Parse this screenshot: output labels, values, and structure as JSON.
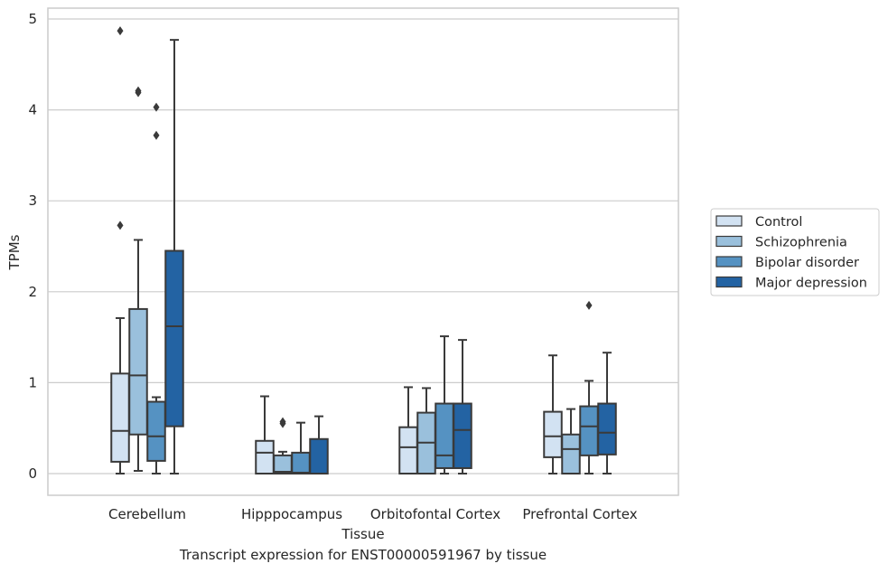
{
  "chart_data": {
    "type": "box",
    "xlabel": "Tissue",
    "ylabel": "TPMs",
    "ylim": [
      -0.23,
      5.13
    ],
    "yticks": [
      0,
      1,
      2,
      3,
      4,
      5
    ],
    "grid": "horizontal",
    "legend_position": "right",
    "categories": [
      "Cerebellum",
      "Hipppocampus",
      "Orbitofontal Cortex",
      "Prefrontal Cortex"
    ],
    "series": [
      {
        "name": "Control",
        "color": "#d2e2f2",
        "boxes": [
          {
            "whislo": 0.0,
            "q1": 0.13,
            "med": 0.47,
            "q3": 1.1,
            "whishi": 1.71,
            "fliers": [
              2.73,
              4.87
            ]
          },
          {
            "whislo": 0.0,
            "q1": 0.0,
            "med": 0.23,
            "q3": 0.36,
            "whishi": 0.85,
            "fliers": []
          },
          {
            "whislo": 0.0,
            "q1": 0.0,
            "med": 0.29,
            "q3": 0.51,
            "whishi": 0.95,
            "fliers": []
          },
          {
            "whislo": 0.0,
            "q1": 0.18,
            "med": 0.41,
            "q3": 0.68,
            "whishi": 1.3,
            "fliers": []
          }
        ]
      },
      {
        "name": "Schizophrenia",
        "color": "#9ac0dc",
        "boxes": [
          {
            "whislo": 0.03,
            "q1": 0.43,
            "med": 1.08,
            "q3": 1.81,
            "whishi": 2.57,
            "fliers": [
              4.19,
              4.21
            ]
          },
          {
            "whislo": 0.0,
            "q1": 0.0,
            "med": 0.02,
            "q3": 0.2,
            "whishi": 0.24,
            "fliers": [
              0.55,
              0.57
            ]
          },
          {
            "whislo": 0.0,
            "q1": 0.0,
            "med": 0.34,
            "q3": 0.67,
            "whishi": 0.94,
            "fliers": []
          },
          {
            "whislo": 0.0,
            "q1": 0.0,
            "med": 0.27,
            "q3": 0.43,
            "whishi": 0.71,
            "fliers": []
          }
        ]
      },
      {
        "name": "Bipolar disorder",
        "color": "#5592c2",
        "boxes": [
          {
            "whislo": 0.0,
            "q1": 0.14,
            "med": 0.41,
            "q3": 0.79,
            "whishi": 0.84,
            "fliers": [
              3.72,
              4.03
            ]
          },
          {
            "whislo": 0.0,
            "q1": 0.0,
            "med": 0.01,
            "q3": 0.23,
            "whishi": 0.56,
            "fliers": []
          },
          {
            "whislo": 0.0,
            "q1": 0.06,
            "med": 0.2,
            "q3": 0.77,
            "whishi": 1.51,
            "fliers": []
          },
          {
            "whislo": 0.0,
            "q1": 0.2,
            "med": 0.52,
            "q3": 0.74,
            "whishi": 1.02,
            "fliers": [
              1.85
            ]
          }
        ]
      },
      {
        "name": "Major depression",
        "color": "#2363a3",
        "boxes": [
          {
            "whislo": 0.0,
            "q1": 0.52,
            "med": 1.62,
            "q3": 2.45,
            "whishi": 4.77,
            "fliers": []
          },
          {
            "whislo": 0.0,
            "q1": 0.0,
            "med": 0.0,
            "q3": 0.38,
            "whishi": 0.63,
            "fliers": []
          },
          {
            "whislo": 0.0,
            "q1": 0.06,
            "med": 0.48,
            "q3": 0.77,
            "whishi": 1.47,
            "fliers": []
          },
          {
            "whislo": 0.0,
            "q1": 0.21,
            "med": 0.45,
            "q3": 0.77,
            "whishi": 1.33,
            "fliers": []
          }
        ]
      }
    ]
  },
  "caption": "Transcript expression for ENST00000591967 by tissue"
}
